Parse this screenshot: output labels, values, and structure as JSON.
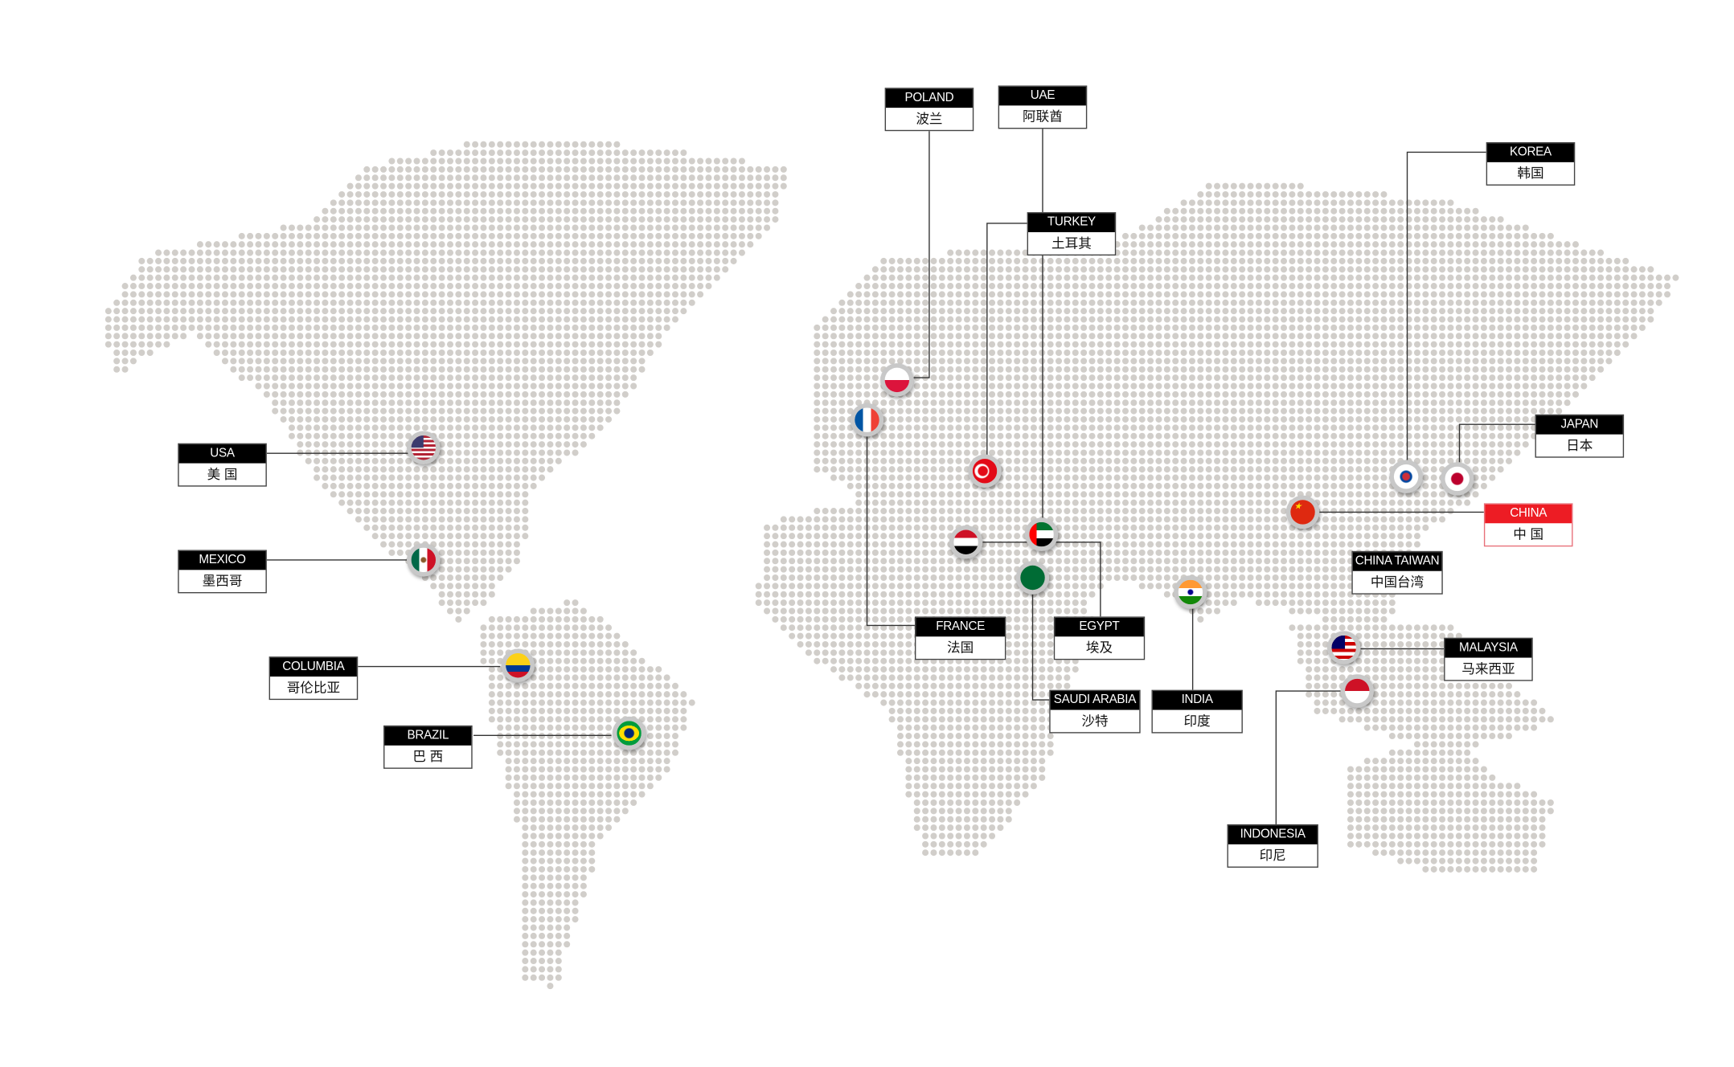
{
  "colors": {
    "dot": "#d1ceca",
    "label_bg": "#000000",
    "highlight": "#ed1c24",
    "line": "#333333"
  },
  "countries": [
    {
      "key": "poland",
      "en": "POLAND",
      "cn": "波兰"
    },
    {
      "key": "uae",
      "en": "UAE",
      "cn": "阿联酋"
    },
    {
      "key": "turkey",
      "en": "TURKEY",
      "cn": "土耳其"
    },
    {
      "key": "korea",
      "en": "KOREA",
      "cn": "韩国"
    },
    {
      "key": "japan",
      "en": "JAPAN",
      "cn": "日本"
    },
    {
      "key": "china",
      "en": "CHINA",
      "cn": "中 国",
      "highlighted": true
    },
    {
      "key": "china_taiwan",
      "en": "CHINA TAIWAN",
      "cn": "中国台湾"
    },
    {
      "key": "malaysia",
      "en": "MALAYSIA",
      "cn": "马来西亚"
    },
    {
      "key": "indonesia",
      "en": "INDONESIA",
      "cn": "印尼"
    },
    {
      "key": "india",
      "en": "INDIA",
      "cn": "印度"
    },
    {
      "key": "saudi_arabia",
      "en": "SAUDI ARABIA",
      "cn": "沙特"
    },
    {
      "key": "egypt",
      "en": "EGYPT",
      "cn": "埃及"
    },
    {
      "key": "france",
      "en": "FRANCE",
      "cn": "法国"
    },
    {
      "key": "usa",
      "en": "USA",
      "cn": "美 国"
    },
    {
      "key": "mexico",
      "en": "MEXICO",
      "cn": "墨西哥"
    },
    {
      "key": "columbia",
      "en": "COLUMBIA",
      "cn": "哥伦比亚"
    },
    {
      "key": "brazil",
      "en": "BRAZIL",
      "cn": "巴 西"
    }
  ]
}
